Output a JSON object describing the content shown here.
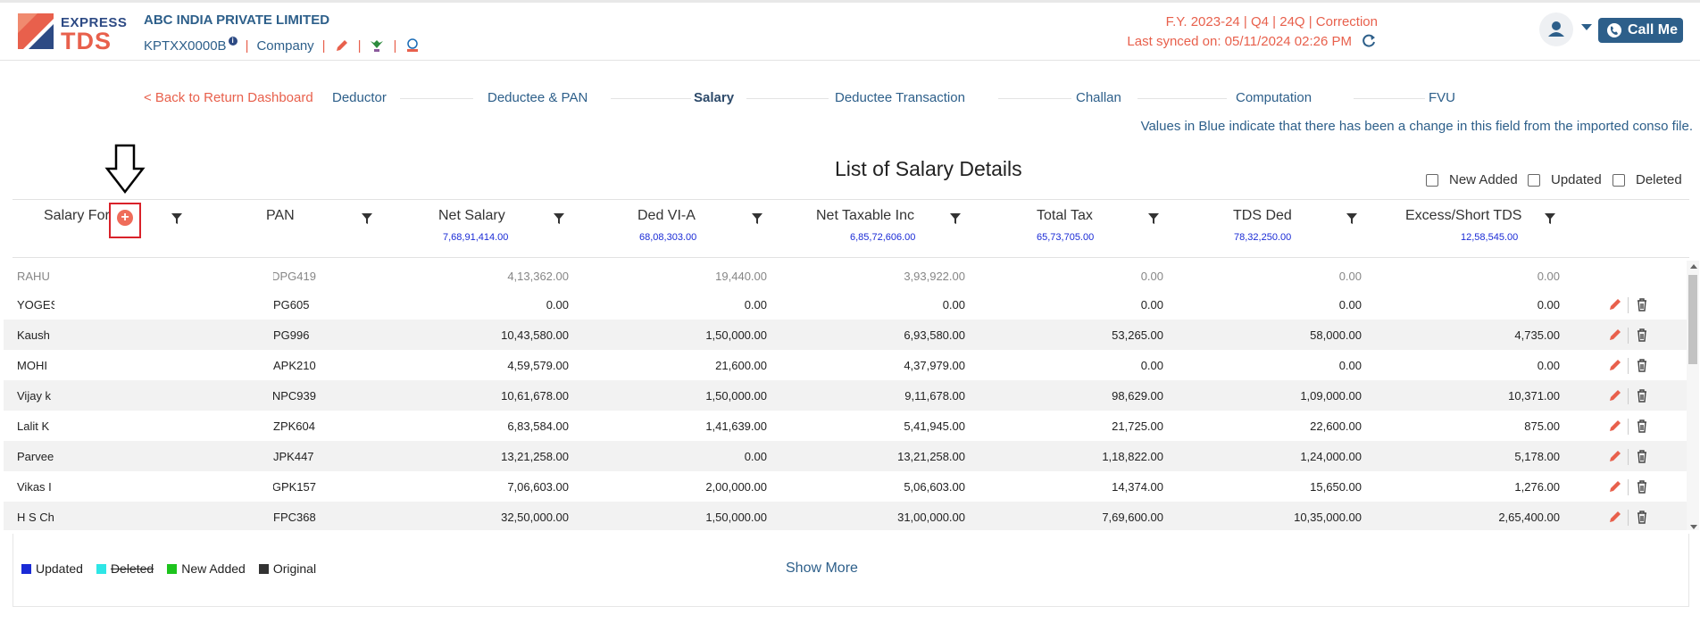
{
  "header": {
    "logo_express": "EXPRESS",
    "logo_tds": "TDS",
    "company_name": "ABC INDIA PRIVATE LIMITED",
    "tan": "KPTXX0000B",
    "entity_type": "Company",
    "fy_info": "F.Y. 2023-24  | Q4  | 24Q | Correction",
    "last_synced": "Last synced on: 05/11/2024 02:26 PM",
    "call_me": "Call Me",
    "brand_color": "#e8604c",
    "primary_color": "#2d5f8a"
  },
  "nav": {
    "back": "< Back to Return Dashboard",
    "steps": [
      "Deductor",
      "Deductee & PAN",
      "Salary",
      "Deductee Transaction",
      "Challan",
      "Computation",
      "FVU"
    ],
    "active_step": "Salary"
  },
  "note": "Values in Blue indicate that there has been a change in this field from the imported conso file.",
  "title": "List of Salary Details",
  "filters": {
    "new_added": "New Added",
    "updated": "Updated",
    "deleted": "Deleted"
  },
  "columns": {
    "salary_for": "Salary For",
    "pan": "PAN",
    "net_salary": "Net Salary",
    "ded_via": "Ded VI-A",
    "net_taxable": "Net Taxable Inc",
    "total_tax": "Total Tax",
    "tds_ded": "TDS Ded",
    "excess_short": "Excess/Short TDS"
  },
  "totals": {
    "net_salary": "7,68,91,414.00",
    "ded_via": "68,08,303.00",
    "net_taxable": "6,85,72,606.00",
    "total_tax": "65,73,705.00",
    "tds_ded": "78,32,250.00",
    "excess_short": "12,58,545.00"
  },
  "rows": [
    {
      "name": "RAHU",
      "pan": "DPG419",
      "net_salary": "4,13,362.00",
      "ded_via": "19,440.00",
      "net_taxable": "3,93,922.00",
      "total_tax": "0.00",
      "tds_ded": "0.00",
      "excess_short": "0.00"
    },
    {
      "name": "YOGES",
      "pan": "PG605",
      "net_salary": "0.00",
      "ded_via": "0.00",
      "net_taxable": "0.00",
      "total_tax": "0.00",
      "tds_ded": "0.00",
      "excess_short": "0.00"
    },
    {
      "name": "Kaush",
      "pan": "PG996",
      "net_salary": "10,43,580.00",
      "ded_via": "1,50,000.00",
      "net_taxable": "6,93,580.00",
      "total_tax": "53,265.00",
      "tds_ded": "58,000.00",
      "excess_short": "4,735.00"
    },
    {
      "name": "MOHI",
      "pan": "APK210",
      "net_salary": "4,59,579.00",
      "ded_via": "21,600.00",
      "net_taxable": "4,37,979.00",
      "total_tax": "0.00",
      "tds_ded": "0.00",
      "excess_short": "0.00"
    },
    {
      "name": "Vijay k",
      "pan": "NPC939",
      "net_salary": "10,61,678.00",
      "ded_via": "1,50,000.00",
      "net_taxable": "9,11,678.00",
      "total_tax": "98,629.00",
      "tds_ded": "1,09,000.00",
      "excess_short": "10,371.00"
    },
    {
      "name": "Lalit K",
      "pan": "ZPK604",
      "net_salary": "6,83,584.00",
      "ded_via": "1,41,639.00",
      "net_taxable": "5,41,945.00",
      "total_tax": "21,725.00",
      "tds_ded": "22,600.00",
      "excess_short": "875.00"
    },
    {
      "name": "Parvee",
      "pan": "JPK447",
      "net_salary": "13,21,258.00",
      "ded_via": "0.00",
      "net_taxable": "13,21,258.00",
      "total_tax": "1,18,822.00",
      "tds_ded": "1,24,000.00",
      "excess_short": "5,178.00"
    },
    {
      "name": "Vikas I",
      "pan": "GPK157",
      "net_salary": "7,06,603.00",
      "ded_via": "2,00,000.00",
      "net_taxable": "5,06,603.00",
      "total_tax": "14,374.00",
      "tds_ded": "15,650.00",
      "excess_short": "1,276.00"
    },
    {
      "name": "H S Ch",
      "pan": "FPC368",
      "net_salary": "32,50,000.00",
      "ded_via": "1,50,000.00",
      "net_taxable": "31,00,000.00",
      "total_tax": "7,69,600.00",
      "tds_ded": "10,35,000.00",
      "excess_short": "2,65,400.00"
    }
  ],
  "legend": [
    {
      "label": "Updated",
      "color": "#1a2bd6"
    },
    {
      "label": "Deleted",
      "color": "#2ee6e6"
    },
    {
      "label": "New Added",
      "color": "#1dc31d"
    },
    {
      "label": "Original",
      "color": "#333333"
    }
  ],
  "show_more": "Show More"
}
